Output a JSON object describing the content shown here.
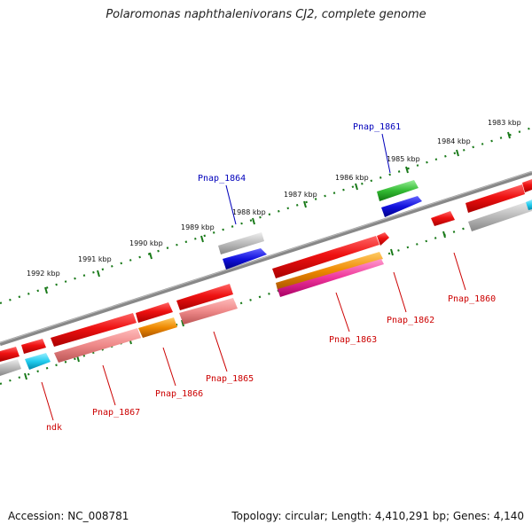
{
  "title": "Polaromonas naphthalenivorans CJ2, complete genome",
  "footer": {
    "accession": "Accession: NC_008781",
    "summary": "Topology: circular; Length: 4,410,291 bp; Genes: 4,140"
  },
  "kbp_labels": [
    "1983 kbp",
    "1984 kbp",
    "1985 kbp",
    "1986 kbp",
    "1987 kbp",
    "1988 kbp",
    "1989 kbp",
    "1990 kbp",
    "1991 kbp",
    "1992 kbp"
  ],
  "gene_labels": [
    "Pnap_1861",
    "Pnap_1864",
    "Pnap_1860",
    "Pnap_1862",
    "Pnap_1863",
    "Pnap_1865",
    "Pnap_1866",
    "Pnap_1867",
    "ndk"
  ],
  "colors": {
    "backbone": "#777777",
    "tick_green": "#1a7a1a",
    "red": "#ee1111",
    "pink": "#ee8888",
    "gray": "#bbbbbb",
    "blue": "#1111dd",
    "green": "#33bb33",
    "orange": "#ee8800",
    "magenta": "#ee3399",
    "cyan": "#22ccee"
  }
}
